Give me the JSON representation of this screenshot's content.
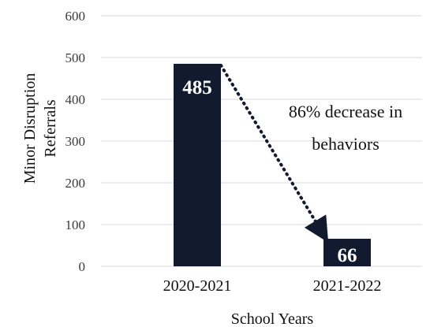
{
  "chart_data": {
    "type": "bar",
    "categories": [
      "2020-2021",
      "2021-2022"
    ],
    "values": [
      485,
      66
    ],
    "data_labels": [
      "485",
      "66"
    ],
    "xlabel": "School Years",
    "ylabel_lines": [
      "Minor Disruption",
      "Referrals"
    ],
    "ylim": [
      0,
      600
    ],
    "yticks": [
      0,
      100,
      200,
      300,
      400,
      500,
      600
    ],
    "ytick_labels": [
      "0",
      "100",
      "200",
      "300",
      "400",
      "500",
      "600"
    ],
    "grid": true,
    "legend": "none",
    "annotation_lines": [
      "86% decrease in",
      "behaviors"
    ],
    "bar_color": "#111a2e",
    "grid_color": "#d9d9d9",
    "arrow_color": "#111a2e"
  }
}
